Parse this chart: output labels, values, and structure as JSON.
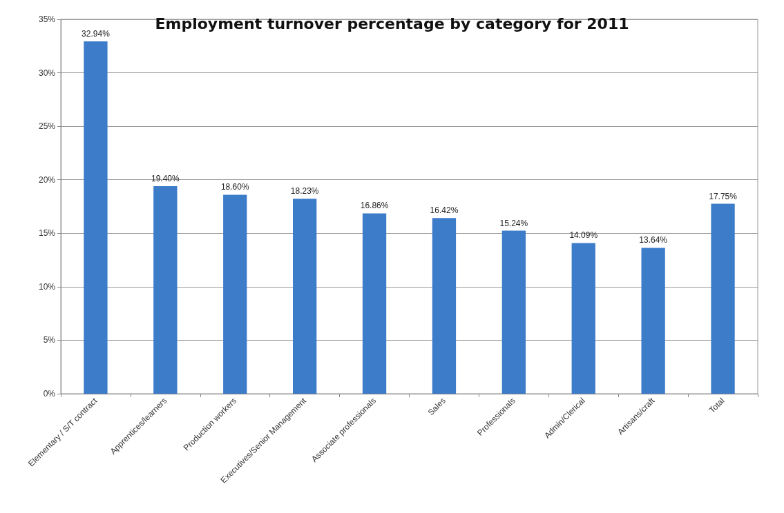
{
  "chart_data": {
    "type": "bar",
    "title": "Employment turnover percentage by category for 2011",
    "categories": [
      "Elementary / S/T contract",
      "Apprentices/learners",
      "Production workers",
      "Executives/Senior Management",
      "Associate professionals",
      "Sales",
      "Professionals",
      "Admin/Clerical",
      "Artisans/craft",
      "Total"
    ],
    "values": [
      32.94,
      19.4,
      18.6,
      18.23,
      16.86,
      16.42,
      15.24,
      14.09,
      13.64,
      17.75
    ],
    "value_labels": [
      "32.94%",
      "19.40%",
      "18.60%",
      "18.23%",
      "16.86%",
      "16.42%",
      "15.24%",
      "14.09%",
      "13.64%",
      "17.75%"
    ],
    "color": "#3d7cc9",
    "ylim": [
      0,
      35
    ],
    "yticks": [
      {
        "value": 0,
        "label": "0%"
      },
      {
        "value": 5,
        "label": "5%"
      },
      {
        "value": 10,
        "label": "10%"
      },
      {
        "value": 15,
        "label": "15%"
      },
      {
        "value": 20,
        "label": "20%"
      },
      {
        "value": 25,
        "label": "25%"
      },
      {
        "value": 30,
        "label": "30%"
      },
      {
        "value": 35,
        "label": "35%"
      }
    ],
    "grid": "y"
  }
}
